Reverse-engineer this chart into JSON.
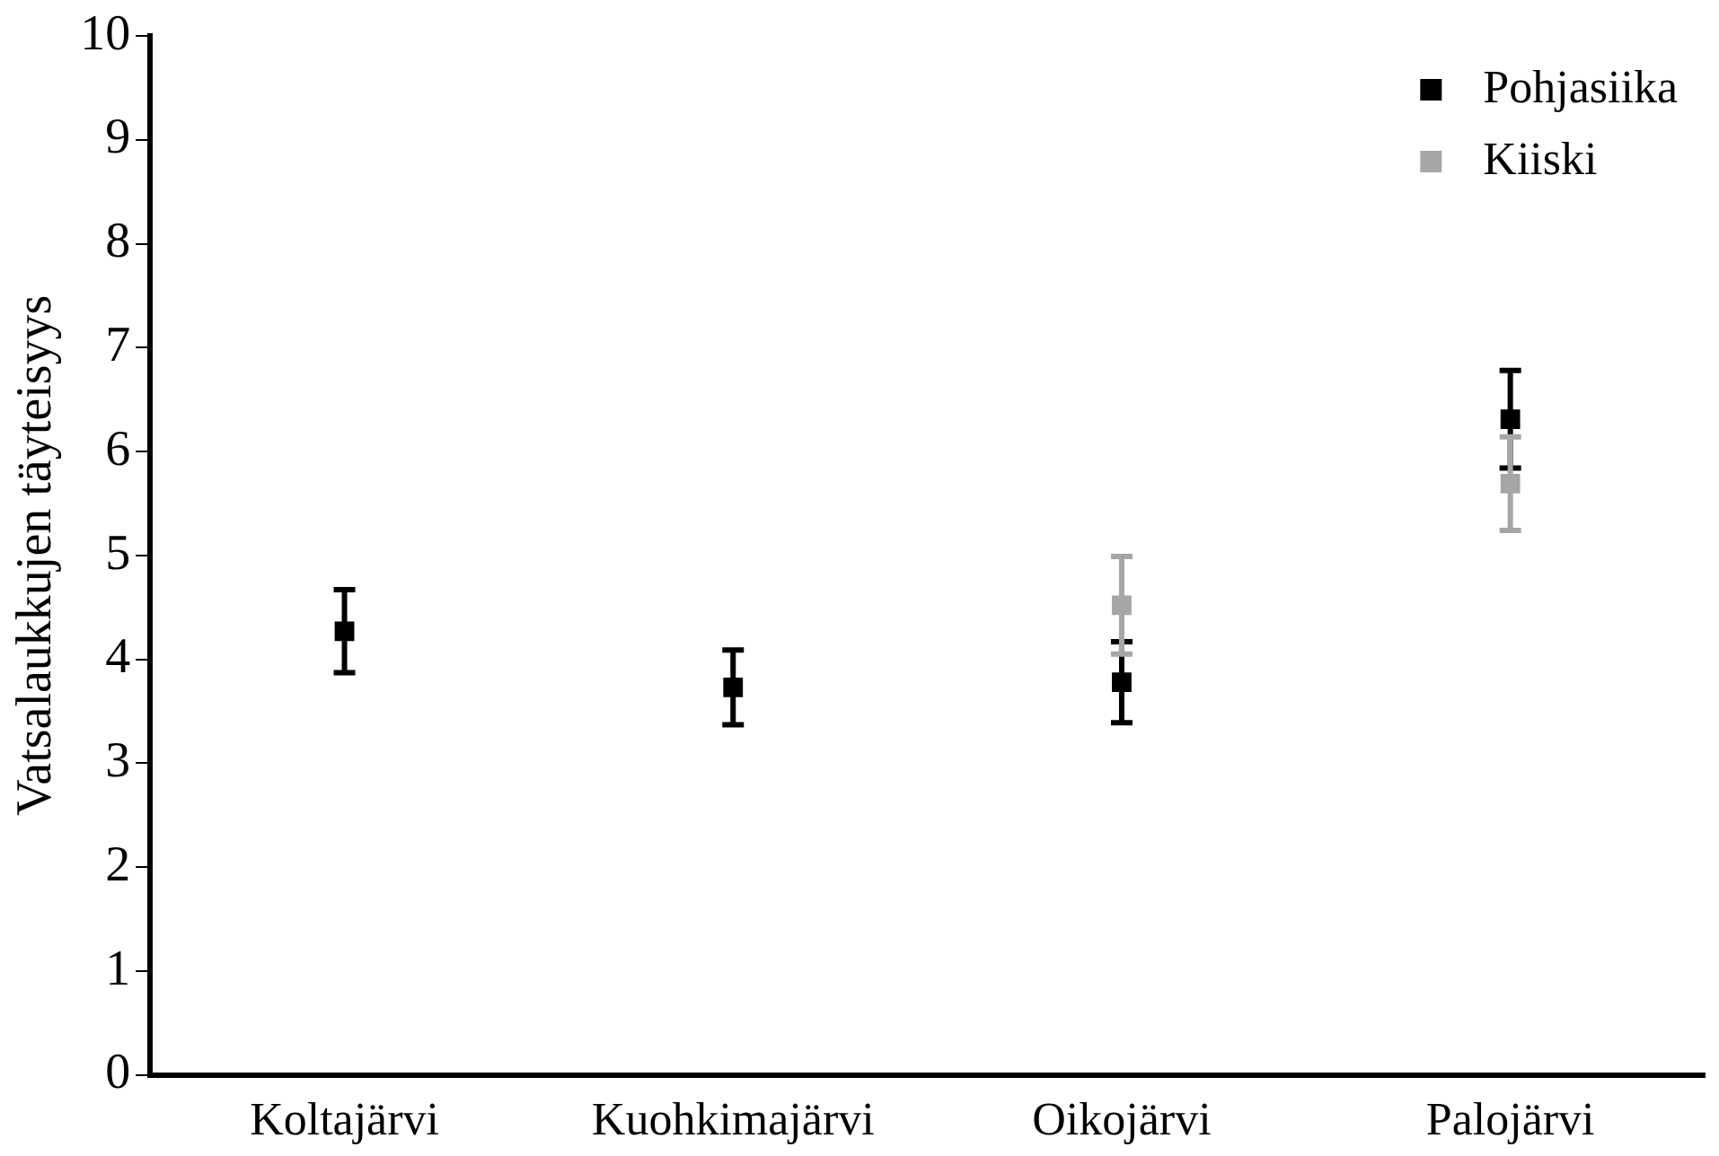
{
  "chart_data": {
    "type": "scatter",
    "ylabel": "Vatsalaukkujen täyteisyys",
    "categories": [
      "Koltajärvi",
      "Kuohkimajärvi",
      "Oikojärvi",
      "Palojärvi"
    ],
    "series": [
      {
        "name": "Pohjasiika",
        "color": "#000000",
        "values": [
          4.27,
          3.73,
          3.78,
          6.31
        ],
        "errors": [
          0.4,
          0.36,
          0.39,
          0.47
        ]
      },
      {
        "name": "Kiiski",
        "color": "#a6a6a6",
        "values": [
          null,
          null,
          4.52,
          5.69
        ],
        "errors": [
          null,
          null,
          0.47,
          0.45
        ]
      }
    ],
    "ylim": [
      0,
      10
    ],
    "yticks": [
      0,
      1,
      2,
      3,
      4,
      5,
      6,
      7,
      8,
      9,
      10
    ],
    "grid": false,
    "legend": "top right",
    "marker": "square"
  }
}
